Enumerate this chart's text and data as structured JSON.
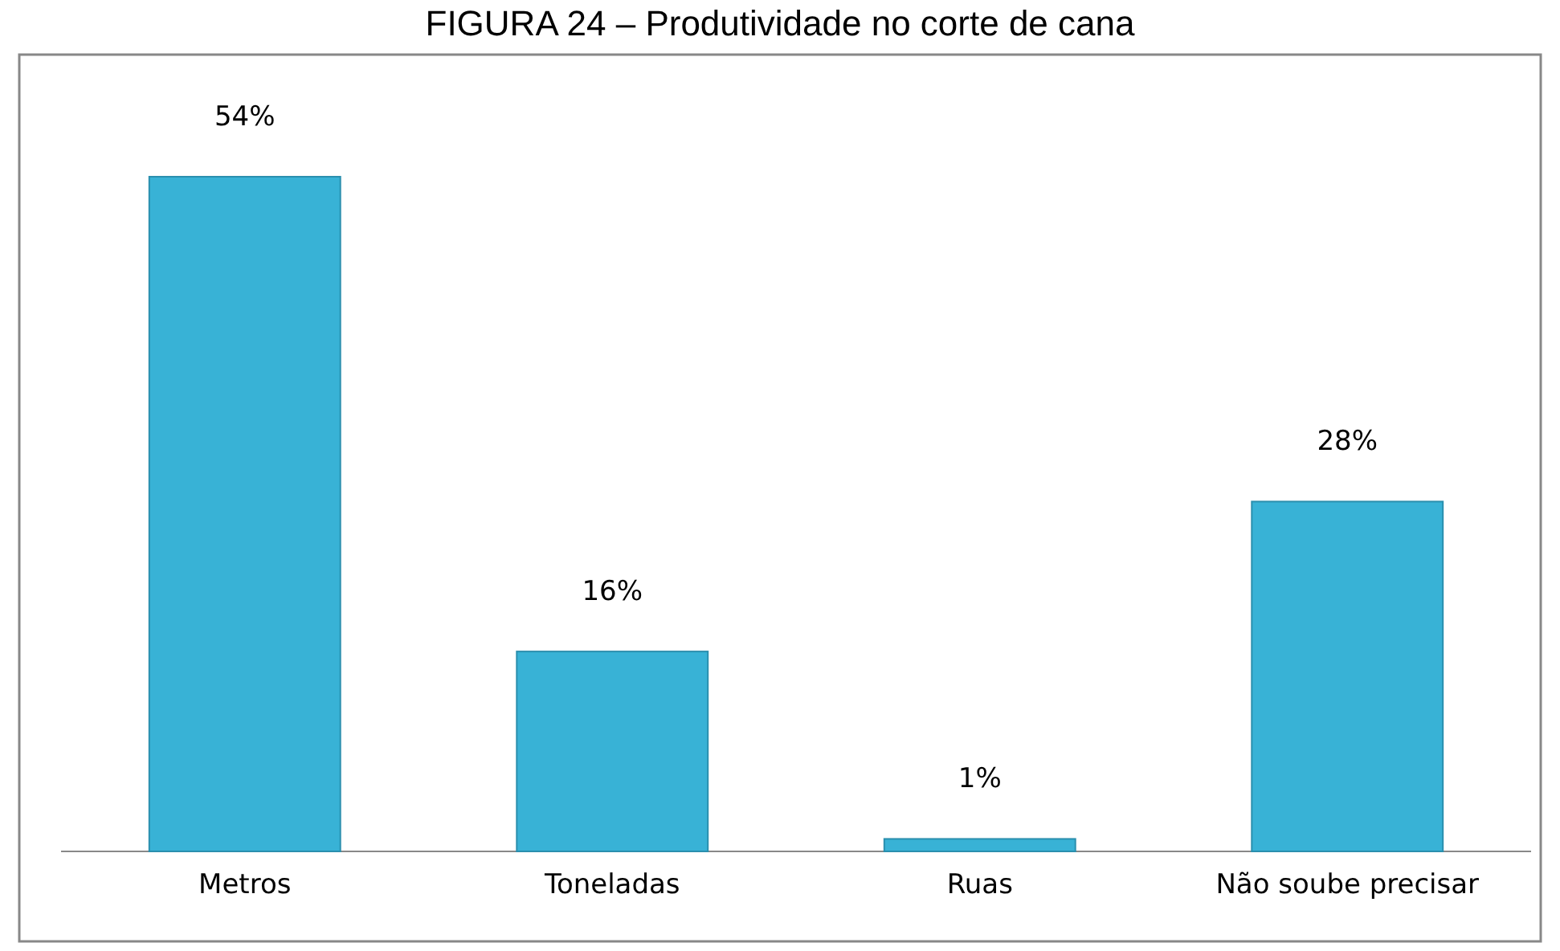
{
  "chart_data": {
    "type": "bar",
    "title": "FIGURA 24 – Produtividade no corte de cana",
    "categories": [
      "Metros",
      "Toneladas",
      "Ruas",
      "Não soube precisar"
    ],
    "values": [
      54,
      16,
      1,
      28
    ],
    "value_labels": [
      "54%",
      "16%",
      "1%",
      "28%"
    ],
    "color": "#38b2d6"
  }
}
